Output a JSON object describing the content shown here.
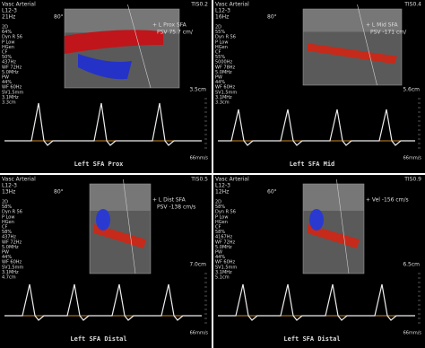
{
  "panels": [
    {
      "header": {
        "mode": "Vasc Arterial",
        "probe": "L12-3",
        "rate": "21Hz",
        "angle": "80°",
        "index": "TIS0.2"
      },
      "settings": [
        "2D",
        "64%",
        "Dyn R 56",
        "P Low",
        "HGen",
        "CF",
        "50%",
        "437Hz",
        "WF 72Hz",
        "5.0MHz",
        "PW",
        "44%",
        "WF 60Hz",
        "SV1.5mm",
        "3.1MHz",
        "3.3cm"
      ],
      "label": "+ L Prox SFA",
      "psv": "PSV 75.7 cm/",
      "depth": "3.5cm",
      "caption": "Left SFA Prox",
      "speed": "66mm/s"
    },
    {
      "header": {
        "mode": "Vasc Arterial",
        "probe": "L12-3",
        "rate": "16Hz",
        "angle": "80°",
        "index": "TIS0.4"
      },
      "settings": [
        "2D",
        "55%",
        "Dyn R 56",
        "P Low",
        "HGen",
        "CF",
        "55%",
        "5000Hz",
        "WF 78Hz",
        "5.0MHz",
        "PW",
        "44%",
        "WF 60Hz",
        "SV1.5mm",
        "3.1MHz",
        "3.3cm"
      ],
      "label": "+ L Mid SFA",
      "psv": "PSV -171 cm/",
      "depth": "5.6cm",
      "caption": "Left SFA Mid",
      "speed": "66mm/s"
    },
    {
      "header": {
        "mode": "Vasc Arterial",
        "probe": "L12-3",
        "rate": "13Hz",
        "angle": "80°",
        "index": "TIS0.5"
      },
      "settings": [
        "2D",
        "58%",
        "Dyn R 56",
        "P Low",
        "HGen",
        "CF",
        "58%",
        "437Hz",
        "WF 72Hz",
        "5.0MHz",
        "PW",
        "44%",
        "WF 60Hz",
        "SV1.5mm",
        "3.1MHz",
        "4.7cm"
      ],
      "label": "+ L Dist SFA",
      "psv": "PSV -138 cm/s",
      "depth": "7.0cm",
      "caption": "Left SFA Distal",
      "speed": "66mm/s"
    },
    {
      "header": {
        "mode": "Vasc Arterial",
        "probe": "L12-3",
        "rate": "12Hz",
        "angle": "60°",
        "index": "TIS0.9"
      },
      "settings": [
        "2D",
        "58%",
        "Dyn R 56",
        "P Low",
        "HGen",
        "CF",
        "58%",
        "4167Hz",
        "WF 72Hz",
        "5.0MHz",
        "PW",
        "44%",
        "WF 60Hz",
        "SV1.5mm",
        "3.1MHz",
        "5.1cm"
      ],
      "label": "+ Vel -156 cm/s",
      "psv": "",
      "depth": "6.5cm",
      "caption": "Left SFA Distal",
      "speed": "66mm/s"
    }
  ]
}
